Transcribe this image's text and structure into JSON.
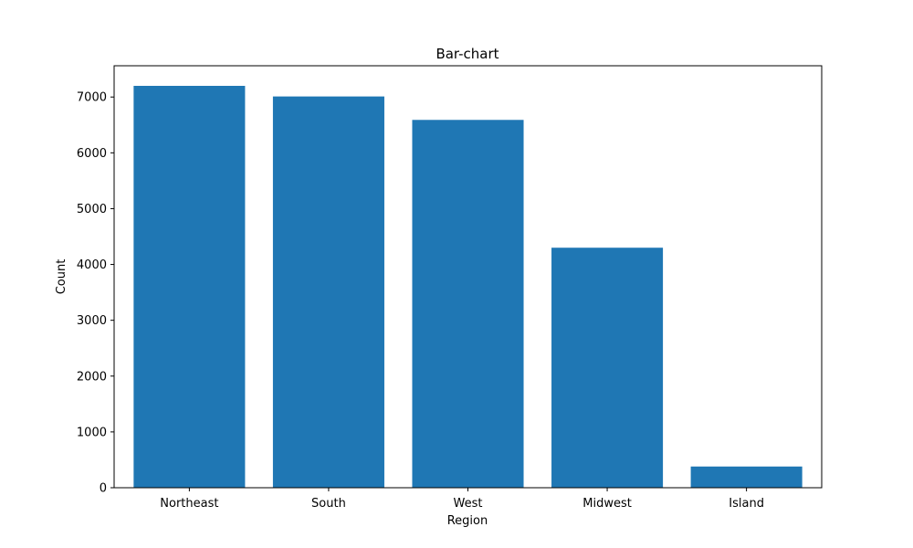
{
  "chart_data": {
    "type": "bar",
    "title": "Bar-chart",
    "xlabel": "Region",
    "ylabel": "Count",
    "categories": [
      "Northeast",
      "South",
      "West",
      "Midwest",
      "Island"
    ],
    "values": [
      7200,
      7010,
      6590,
      4300,
      380
    ],
    "ylim": [
      0,
      7560
    ],
    "yticks": [
      0,
      1000,
      2000,
      3000,
      4000,
      5000,
      6000,
      7000
    ],
    "grid": false,
    "legend": "none",
    "bar_color": "#1f77b4"
  }
}
